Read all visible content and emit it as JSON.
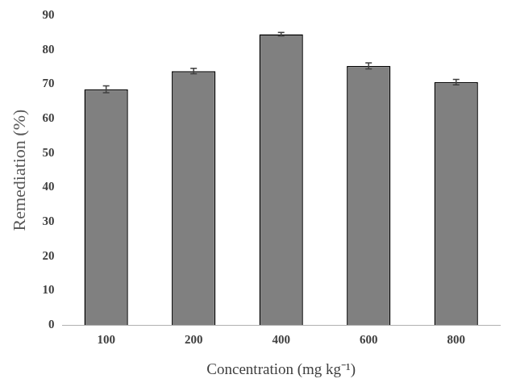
{
  "chart_data": {
    "type": "bar",
    "x_label": "Concentration (mg kg⁻¹)",
    "y_label": "Remediation (%)",
    "categories": [
      "100",
      "200",
      "400",
      "600",
      "800"
    ],
    "values": [
      68.5,
      73.8,
      84.5,
      75.3,
      70.6
    ],
    "errors": [
      1.0,
      0.8,
      0.5,
      0.9,
      0.8
    ],
    "color": "#808080",
    "ylim": [
      0,
      90
    ],
    "yticks": [
      0,
      10,
      20,
      30,
      40,
      50,
      60,
      70,
      80,
      90
    ],
    "grid": false
  }
}
